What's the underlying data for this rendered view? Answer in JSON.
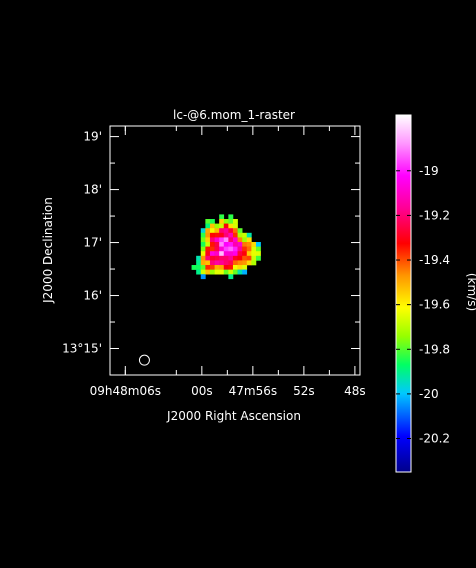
{
  "chart_data": {
    "type": "heatmap",
    "title": "lc-@6.mom_1-raster",
    "xlabel": "J2000 Right Ascension",
    "ylabel": "J2000 Declination",
    "x_ticks": [
      {
        "label": "09h48m06s",
        "ra_s": 6.0
      },
      {
        "label": "00s",
        "ra_s": 0.0
      },
      {
        "label": "47m56s",
        "ra_s": -4.0
      },
      {
        "label": "52s",
        "ra_s": -8.0
      },
      {
        "label": "48s",
        "ra_s": -12.0
      }
    ],
    "x_range_ra_s": [
      7.2,
      -12.4
    ],
    "y_ticks": [
      {
        "label": "19'",
        "dec_arcmin": 19
      },
      {
        "label": "18'",
        "dec_arcmin": 18
      },
      {
        "label": "17'",
        "dec_arcmin": 17
      },
      {
        "label": "16'",
        "dec_arcmin": 16
      },
      {
        "label": "13°15'",
        "dec_arcmin": 15
      }
    ],
    "y_range_dec_arcmin": [
      14.5,
      19.2
    ],
    "colorbar": {
      "unit_label": "(km/s)",
      "min": -20.35,
      "max": -18.75,
      "ticks": [
        -19,
        -19.2,
        -19.4,
        -19.6,
        -19.8,
        -20,
        -20.2
      ],
      "tick_labels": [
        "-19",
        "-19.2",
        "-19.4",
        "-19.6",
        "-19.8",
        "-20",
        "-20.2"
      ]
    },
    "source": {
      "center_ra_s": -1.9,
      "center_dec_arcmin": 16.88,
      "radius_arcmin": 0.56,
      "peak_value_kms": -18.8,
      "edge_value_kms": -19.85
    },
    "beam": {
      "ra_s": 4.5,
      "dec_arcmin": 14.78
    }
  }
}
